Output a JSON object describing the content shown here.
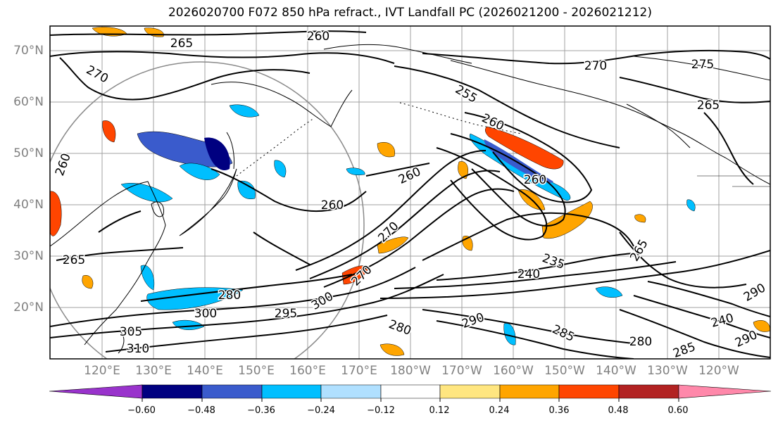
{
  "title": "2026020700 F072 850 hPa refract., IVT Landfall PC (2026021200 - 2026021212)",
  "map": {
    "lat_labels": [
      "70°N",
      "60°N",
      "50°N",
      "40°N",
      "30°N",
      "20°N"
    ],
    "lon_labels": [
      "120°E",
      "130°E",
      "140°E",
      "150°E",
      "160°E",
      "170°E",
      "180°W",
      "170°W",
      "160°W",
      "150°W",
      "140°W",
      "130°W",
      "120°W"
    ],
    "contour_labels": [
      {
        "text": "260",
        "name": "contour-label-260-top"
      },
      {
        "text": "265",
        "name": "contour-label-265-nw"
      },
      {
        "text": "270",
        "name": "contour-label-270-west"
      },
      {
        "text": "255",
        "name": "contour-label-255-bering"
      },
      {
        "text": "270",
        "name": "contour-label-270-alaska"
      },
      {
        "text": "275",
        "name": "contour-label-275-canada"
      },
      {
        "text": "265",
        "name": "contour-label-265-bc"
      },
      {
        "text": "260",
        "name": "contour-label-260-gulf"
      },
      {
        "text": "260",
        "name": "contour-label-260-aleutian"
      },
      {
        "text": "260",
        "name": "contour-label-260-central"
      },
      {
        "text": "260",
        "name": "contour-label-260-pacific"
      },
      {
        "text": "265",
        "name": "contour-label-265-japan"
      },
      {
        "text": "270",
        "name": "contour-label-270-mid"
      },
      {
        "text": "235",
        "name": "contour-label-235"
      },
      {
        "text": "240",
        "name": "contour-label-240"
      },
      {
        "text": "280",
        "name": "contour-label-280-west"
      },
      {
        "text": "300",
        "name": "contour-label-300-west"
      },
      {
        "text": "305",
        "name": "contour-label-305"
      },
      {
        "text": "310",
        "name": "contour-label-310"
      },
      {
        "text": "295",
        "name": "contour-label-295"
      },
      {
        "text": "300",
        "name": "contour-label-300-mid"
      },
      {
        "text": "270",
        "name": "contour-label-270-jet"
      },
      {
        "text": "290",
        "name": "contour-label-290-mid"
      },
      {
        "text": "280",
        "name": "contour-label-280-mid"
      },
      {
        "text": "285",
        "name": "contour-label-285-mid"
      },
      {
        "text": "290",
        "name": "contour-label-290-east"
      },
      {
        "text": "285",
        "name": "contour-label-285-east"
      },
      {
        "text": "280",
        "name": "contour-label-280-east"
      },
      {
        "text": "240",
        "name": "contour-label-240-east"
      },
      {
        "text": "290",
        "name": "contour-label-290-far-east"
      },
      {
        "text": "265",
        "name": "contour-label-265-east"
      },
      {
        "text": "260",
        "name": "contour-label-260-nw-coast"
      }
    ]
  },
  "colorbar": {
    "tick_labels": [
      "−0.60",
      "−0.48",
      "−0.36",
      "−0.24",
      "−0.12",
      "0.12",
      "0.24",
      "0.36",
      "0.48",
      "0.60"
    ],
    "colors": [
      "#9933cc",
      "#000080",
      "#3a5bcc",
      "#00bfff",
      "#b0e0ff",
      "#ffffff",
      "#ffe680",
      "#ffa500",
      "#ff4500",
      "#b22222",
      "#ff88aa"
    ]
  }
}
